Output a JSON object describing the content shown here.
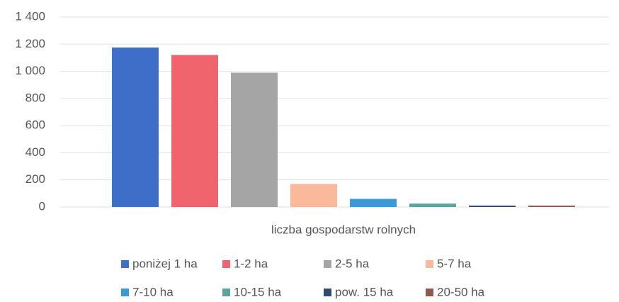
{
  "chart_data": {
    "type": "bar",
    "categories": [
      "liczba gospodarstw rolnych"
    ],
    "series": [
      {
        "name": "poniżej 1 ha",
        "color": "#3d6fc9",
        "values": [
          1175
        ]
      },
      {
        "name": "1-2 ha",
        "color": "#f0646e",
        "values": [
          1120
        ]
      },
      {
        "name": "2-5 ha",
        "color": "#a5a5a5",
        "values": [
          990
        ]
      },
      {
        "name": "5-7 ha",
        "color": "#f9b99a",
        "values": [
          170
        ]
      },
      {
        "name": "7-10 ha",
        "color": "#3a9ad9",
        "values": [
          60
        ]
      },
      {
        "name": "10-15 ha",
        "color": "#5aa59a",
        "values": [
          25
        ]
      },
      {
        "name": "pow. 15 ha",
        "color": "#2f4a6e",
        "values": [
          10
        ]
      },
      {
        "name": "20-50 ha",
        "color": "#8c5a4e",
        "values": [
          10
        ]
      }
    ],
    "ylim": [
      0,
      1400
    ],
    "yticks": [
      0,
      200,
      400,
      600,
      800,
      {
        "value": 1000,
        "label": "1 000"
      },
      {
        "value": 1200,
        "label": "1 200"
      },
      {
        "value": 1400,
        "label": "1 400"
      }
    ],
    "grid": true,
    "legend": "bottom"
  }
}
